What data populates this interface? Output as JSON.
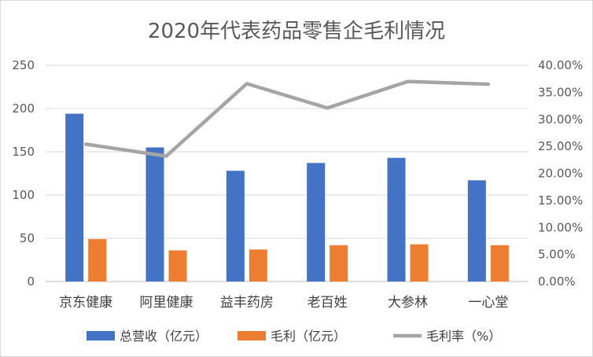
{
  "chart_data": {
    "type": "bar",
    "title": "2020年代表药品零售企毛利情况",
    "categories": [
      "京东健康",
      "阿里健康",
      "益丰药房",
      "老百姓",
      "大参林",
      "一心堂"
    ],
    "series": [
      {
        "name": "总营收（亿元）",
        "type": "bar",
        "axis": "left",
        "color": "#4472C4",
        "values": [
          194,
          155,
          128,
          137,
          143,
          117
        ]
      },
      {
        "name": "毛利（亿元）",
        "type": "bar",
        "axis": "left",
        "color": "#ED7D31",
        "values": [
          49,
          36,
          37,
          42,
          43,
          42
        ]
      },
      {
        "name": "毛利率（%）",
        "type": "line",
        "axis": "right",
        "color": "#A5A5A5",
        "values": [
          25.4,
          23.2,
          36.6,
          32.1,
          37.0,
          36.5
        ]
      }
    ],
    "y_left": {
      "min": 0,
      "max": 250,
      "step": 50,
      "ticks": [
        "0",
        "50",
        "100",
        "150",
        "200",
        "250"
      ]
    },
    "y_right": {
      "min": 0,
      "max": 40,
      "step": 5,
      "ticks": [
        "0.00%",
        "5.00%",
        "10.00%",
        "15.00%",
        "20.00%",
        "25.00%",
        "30.00%",
        "35.00%",
        "40.00%"
      ]
    },
    "grid": true,
    "legend_position": "bottom"
  }
}
